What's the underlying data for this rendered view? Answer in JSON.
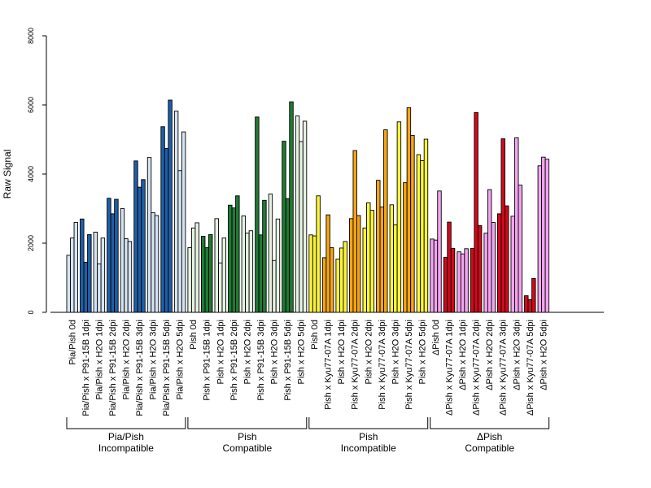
{
  "chart_data": {
    "type": "bar",
    "title": "",
    "ylabel": "Raw Signal",
    "ylim": [
      0,
      8000
    ],
    "yticks": [
      0,
      2000,
      4000,
      6000,
      8000
    ],
    "bars_per_category": 3,
    "categories": [
      "Pia/Pish 0d",
      "Pia/Pish x P91-15B 1dpi",
      "Pia/Pish x H2O 1dpi",
      "Pia/Pish x P91-15B 2dpi",
      "Pia/Pish x H2O 2dpi",
      "Pia/Pish x P91-15B 3dpi",
      "Pia/Pish x H2O 3dpi",
      "Pia/Pish x P91-15B 5dpi",
      "Pia/Pish x H2O 5dpi",
      "Pish 0d",
      "Pish x P91-15B 1dpi",
      "Pish x H2O 1dpi",
      "Pish x P91-15B 2dpi",
      "Pish x H2O 2dpi",
      "Pish x P91-15B 3dpi",
      "Pish x H2O 3dpi",
      "Pish x P91-15B 5dpi",
      "Pish x H2O 5dpi",
      "Pish 0d",
      "Pish x Kyu77-07A 1dpi",
      "Pish x H2O 1dpi",
      "Pish x Kyu77-07A 2dpi",
      "Pish x H2O 2dpi",
      "Pish x Kyu77-07A 3dpi",
      "Pish x H2O 3dpi",
      "Pish x Kyu77-07A 5dpi",
      "Pish x H2O 5dpi",
      "ΔPish 0d",
      "ΔPish x Kyu77-07A 1dpi",
      "ΔPish x H2O 1dpi",
      "ΔPish x Kyu77-07A 2dpi",
      "ΔPish x H2O 2dpi",
      "ΔPish x Kyu77-07A 3dpi",
      "ΔPish x H2O 3dpi",
      "ΔPish x Kyu77-07A 5dpi",
      "ΔPish x H2O 5dpi"
    ],
    "colors": [
      "#d6e4f2",
      "#1f5fa8",
      "#d6e4f2",
      "#1f5fa8",
      "#d6e4f2",
      "#1f5fa8",
      "#d6e4f2",
      "#1f5fa8",
      "#d6e4f2",
      "#e6f2e2",
      "#207a34",
      "#e6f2e2",
      "#207a34",
      "#e6f2e2",
      "#207a34",
      "#e6f2e2",
      "#207a34",
      "#e6f2e2",
      "#fbf53a",
      "#f5a512",
      "#fbf53a",
      "#f5a512",
      "#fbf53a",
      "#f5a512",
      "#fbf53a",
      "#f5a512",
      "#fbf53a",
      "#f3a5ef",
      "#d10a1c",
      "#f3a5ef",
      "#d10a1c",
      "#f3a5ef",
      "#d10a1c",
      "#f3a5ef",
      "#d10a1c",
      "#f3a5ef"
    ],
    "values": [
      [
        1650,
        2150,
        2600
      ],
      [
        2700,
        1450,
        2250
      ],
      [
        2320,
        1400,
        2150
      ],
      [
        3300,
        2850,
        3270
      ],
      [
        3000,
        2130,
        2050
      ],
      [
        4380,
        3620,
        3840
      ],
      [
        4480,
        2880,
        2800
      ],
      [
        5370,
        4740,
        6140
      ],
      [
        5820,
        4100,
        5220
      ],
      [
        1870,
        2440,
        2590
      ],
      [
        2200,
        1870,
        2250
      ],
      [
        2710,
        1430,
        2150
      ],
      [
        3100,
        3020,
        3370
      ],
      [
        2790,
        2290,
        2360
      ],
      [
        5650,
        2240,
        3240
      ],
      [
        3420,
        1500,
        2700
      ],
      [
        4950,
        3290,
        6090
      ],
      [
        5680,
        4940,
        5530
      ],
      [
        2240,
        2210,
        3370
      ],
      [
        1580,
        2820,
        1870
      ],
      [
        1540,
        1860,
        2050
      ],
      [
        2710,
        4680,
        2800
      ],
      [
        2440,
        3170,
        2950
      ],
      [
        3820,
        3050,
        5280
      ],
      [
        3110,
        2530,
        5510
      ],
      [
        3750,
        5920,
        5120
      ],
      [
        4560,
        4390,
        5010
      ],
      [
        2120,
        2090,
        3510
      ],
      [
        1590,
        2610,
        1850
      ],
      [
        1750,
        1690,
        1840
      ],
      [
        1850,
        5780,
        2510
      ],
      [
        2290,
        3550,
        2600
      ],
      [
        2850,
        5020,
        3080
      ],
      [
        2780,
        5050,
        3680
      ],
      [
        480,
        370,
        980
      ],
      [
        4240,
        4490,
        4430
      ]
    ],
    "groups": [
      {
        "line1": "Pia/Pish",
        "line2": "Incompatible",
        "start": 0,
        "end": 8
      },
      {
        "line1": "Pish",
        "line2": "Compatible",
        "start": 9,
        "end": 17
      },
      {
        "line1": "Pish",
        "line2": "Incompatible",
        "start": 18,
        "end": 26
      },
      {
        "line1": "ΔPish",
        "line2": "Compatible",
        "start": 27,
        "end": 35
      }
    ]
  }
}
